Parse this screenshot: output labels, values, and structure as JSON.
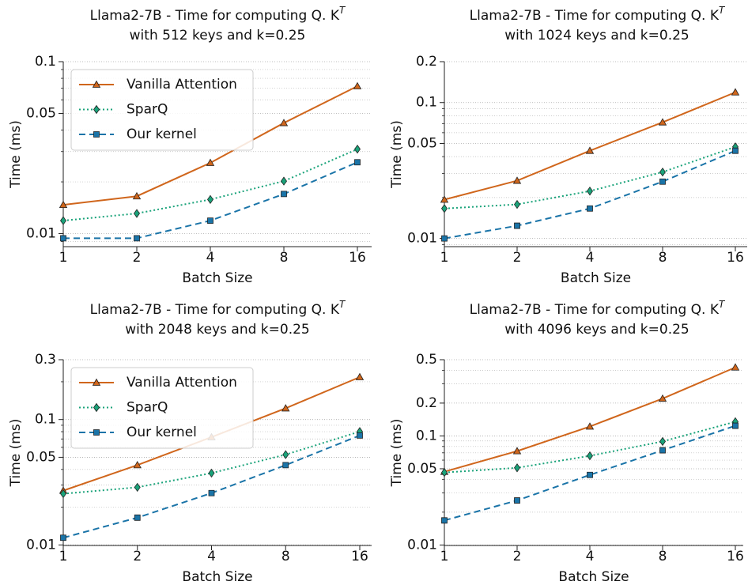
{
  "chart_data": [
    {
      "type": "line",
      "title": "Llama2-7B - Time for computing Q. K",
      "title_superscript": "T",
      "subtitle": "with 512 keys and k=0.25",
      "xlabel": "Batch Size",
      "ylabel": "Time (ms)",
      "categories": [
        "1",
        "2",
        "4",
        "8",
        "16"
      ],
      "yscale": "log",
      "ylim": [
        0.0084,
        0.1
      ],
      "yticks": [
        0.01,
        0.05,
        0.1
      ],
      "grid": true,
      "legend": "upper left",
      "series": [
        {
          "name": "Vanilla Attention",
          "color": "#d0661c",
          "marker": "triangle",
          "linestyle": "solid",
          "values": [
            0.0147,
            0.0165,
            0.0258,
            0.044,
            0.072
          ]
        },
        {
          "name": "SparQ",
          "color": "#1aa37a",
          "marker": "diamond",
          "linestyle": "dotted",
          "values": [
            0.0119,
            0.0131,
            0.0158,
            0.0202,
            0.031
          ]
        },
        {
          "name": "Our kernel",
          "color": "#1a74a8",
          "marker": "square",
          "linestyle": "dashed",
          "values": [
            0.0094,
            0.0094,
            0.0119,
            0.017,
            0.026
          ]
        }
      ]
    },
    {
      "type": "line",
      "title": "Llama2-7B - Time for computing Q. K",
      "title_superscript": "T",
      "subtitle": "with 1024 keys and k=0.25",
      "xlabel": "Batch Size",
      "ylabel": "Time (ms)",
      "categories": [
        "1",
        "2",
        "4",
        "8",
        "16"
      ],
      "yscale": "log",
      "ylim": [
        0.0087,
        0.2
      ],
      "yticks": [
        0.01,
        0.05,
        0.1,
        0.2
      ],
      "grid": true,
      "series": [
        {
          "name": "Vanilla Attention",
          "color": "#d0661c",
          "marker": "triangle",
          "linestyle": "solid",
          "values": [
            0.0193,
            0.0266,
            0.0442,
            0.0716,
            0.119
          ]
        },
        {
          "name": "SparQ",
          "color": "#1aa37a",
          "marker": "diamond",
          "linestyle": "dotted",
          "values": [
            0.0166,
            0.0178,
            0.0223,
            0.0308,
            0.0472
          ]
        },
        {
          "name": "Our kernel",
          "color": "#1a74a8",
          "marker": "square",
          "linestyle": "dashed",
          "values": [
            0.01,
            0.0124,
            0.0166,
            0.0262,
            0.0442
          ]
        }
      ]
    },
    {
      "type": "line",
      "title": "Llama2-7B - Time for computing Q. K",
      "title_superscript": "T",
      "subtitle": "with 2048 keys and k=0.25",
      "xlabel": "Batch Size",
      "ylabel": "Time (ms)",
      "categories": [
        "1",
        "2",
        "4",
        "8",
        "16"
      ],
      "yscale": "log",
      "ylim": [
        0.0099,
        0.3
      ],
      "yticks": [
        0.01,
        0.05,
        0.1,
        0.3
      ],
      "grid": true,
      "legend": "upper left",
      "series": [
        {
          "name": "Vanilla Attention",
          "color": "#d0661c",
          "marker": "triangle",
          "linestyle": "solid",
          "values": [
            0.0271,
            0.0433,
            0.0724,
            0.123,
            0.218
          ]
        },
        {
          "name": "SparQ",
          "color": "#1aa37a",
          "marker": "diamond",
          "linestyle": "dotted",
          "values": [
            0.0256,
            0.0288,
            0.0374,
            0.0525,
            0.0802
          ]
        },
        {
          "name": "Our kernel",
          "color": "#1a74a8",
          "marker": "square",
          "linestyle": "dashed",
          "values": [
            0.0114,
            0.0165,
            0.0259,
            0.0433,
            0.0746
          ]
        }
      ]
    },
    {
      "type": "line",
      "title": "Llama2-7B - Time for computing Q. K",
      "title_superscript": "T",
      "subtitle": "with 4096 keys and k=0.25",
      "xlabel": "Batch Size",
      "ylabel": "Time (ms)",
      "categories": [
        "1",
        "2",
        "4",
        "8",
        "16"
      ],
      "yscale": "log",
      "ylim": [
        0.0099,
        0.5
      ],
      "yticks": [
        0.01,
        0.05,
        0.1,
        0.2,
        0.5
      ],
      "grid": true,
      "series": [
        {
          "name": "Vanilla Attention",
          "color": "#d0661c",
          "marker": "triangle",
          "linestyle": "solid",
          "values": [
            0.047,
            0.0726,
            0.122,
            0.22,
            0.425
          ]
        },
        {
          "name": "SparQ",
          "color": "#1aa37a",
          "marker": "diamond",
          "linestyle": "dotted",
          "values": [
            0.0462,
            0.051,
            0.0657,
            0.089,
            0.135
          ]
        },
        {
          "name": "Our kernel",
          "color": "#1a74a8",
          "marker": "square",
          "linestyle": "dashed",
          "values": [
            0.0168,
            0.0256,
            0.0439,
            0.0739,
            0.124
          ]
        }
      ]
    }
  ]
}
